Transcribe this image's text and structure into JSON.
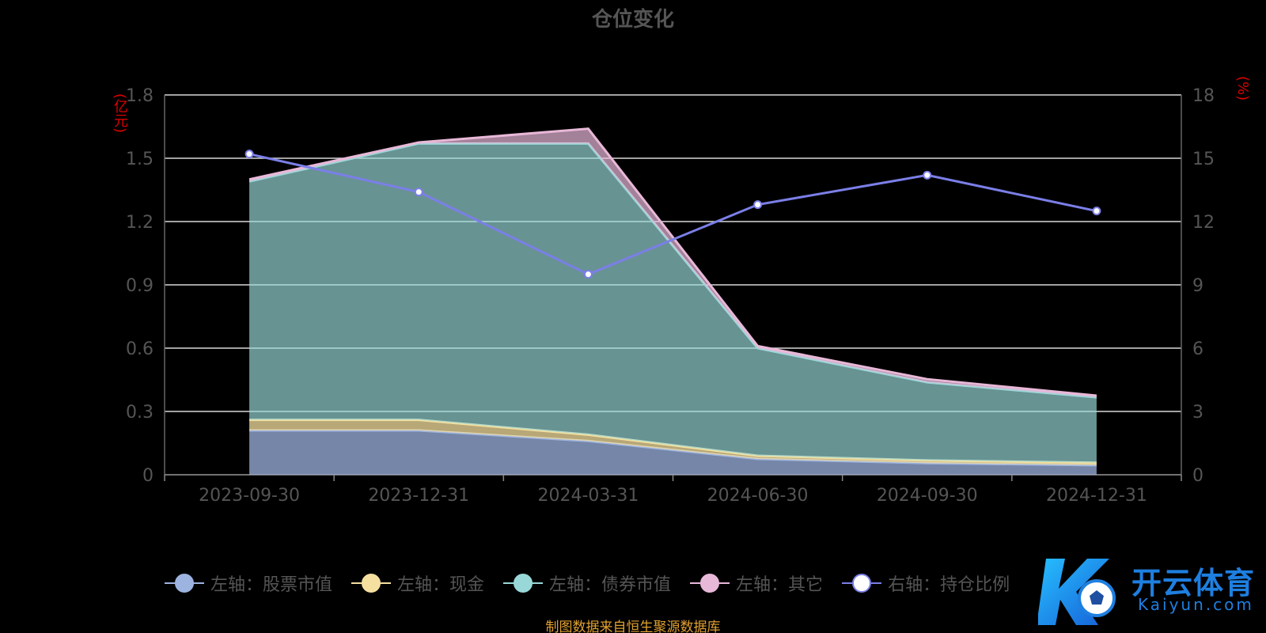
{
  "chart_data": {
    "type": "area",
    "title": "仓位变化",
    "y_left_unit": "(亿元)",
    "y_right_unit": "(%)",
    "categories": [
      "2023-09-30",
      "2023-12-31",
      "2024-03-31",
      "2024-06-30",
      "2024-09-30",
      "2024-12-31"
    ],
    "y_left_ticks": [
      "0",
      "0.3",
      "0.6",
      "0.9",
      "1.2",
      "1.5",
      "1.8"
    ],
    "y_right_ticks": [
      "0",
      "3",
      "6",
      "9",
      "12",
      "15",
      "18"
    ],
    "ylim_left": [
      0,
      1.8
    ],
    "ylim_right": [
      0,
      18
    ],
    "stacked": true,
    "grid": true,
    "series": [
      {
        "name": "左轴：股票市值",
        "axis": "left",
        "type": "area",
        "color": "#9db3e0",
        "values": [
          0.21,
          0.21,
          0.16,
          0.075,
          0.055,
          0.045
        ]
      },
      {
        "name": "左轴：现金",
        "axis": "left",
        "type": "area",
        "color": "#f5e0a0",
        "values": [
          0.05,
          0.05,
          0.03,
          0.015,
          0.013,
          0.012
        ]
      },
      {
        "name": "左轴：债券市值",
        "axis": "left",
        "type": "area",
        "color": "#99d8d8",
        "values": [
          1.13,
          1.31,
          1.38,
          0.51,
          0.37,
          0.31
        ]
      },
      {
        "name": "左轴：其它",
        "axis": "left",
        "type": "area",
        "color": "#e8b8d8",
        "values": [
          0.01,
          0.005,
          0.07,
          0.01,
          0.015,
          0.008
        ]
      },
      {
        "name": "右轴：持仓比例",
        "axis": "right",
        "type": "line",
        "color": "#7b7fe8",
        "values": [
          15.2,
          13.4,
          9.5,
          12.8,
          14.2,
          12.5
        ]
      }
    ],
    "legend_position": "bottom"
  },
  "footer": {
    "source": "制图数据来自恒生聚源数据库"
  },
  "watermark": {
    "brand_cn": "开云体育",
    "brand_en": "Kaiyun.com"
  }
}
